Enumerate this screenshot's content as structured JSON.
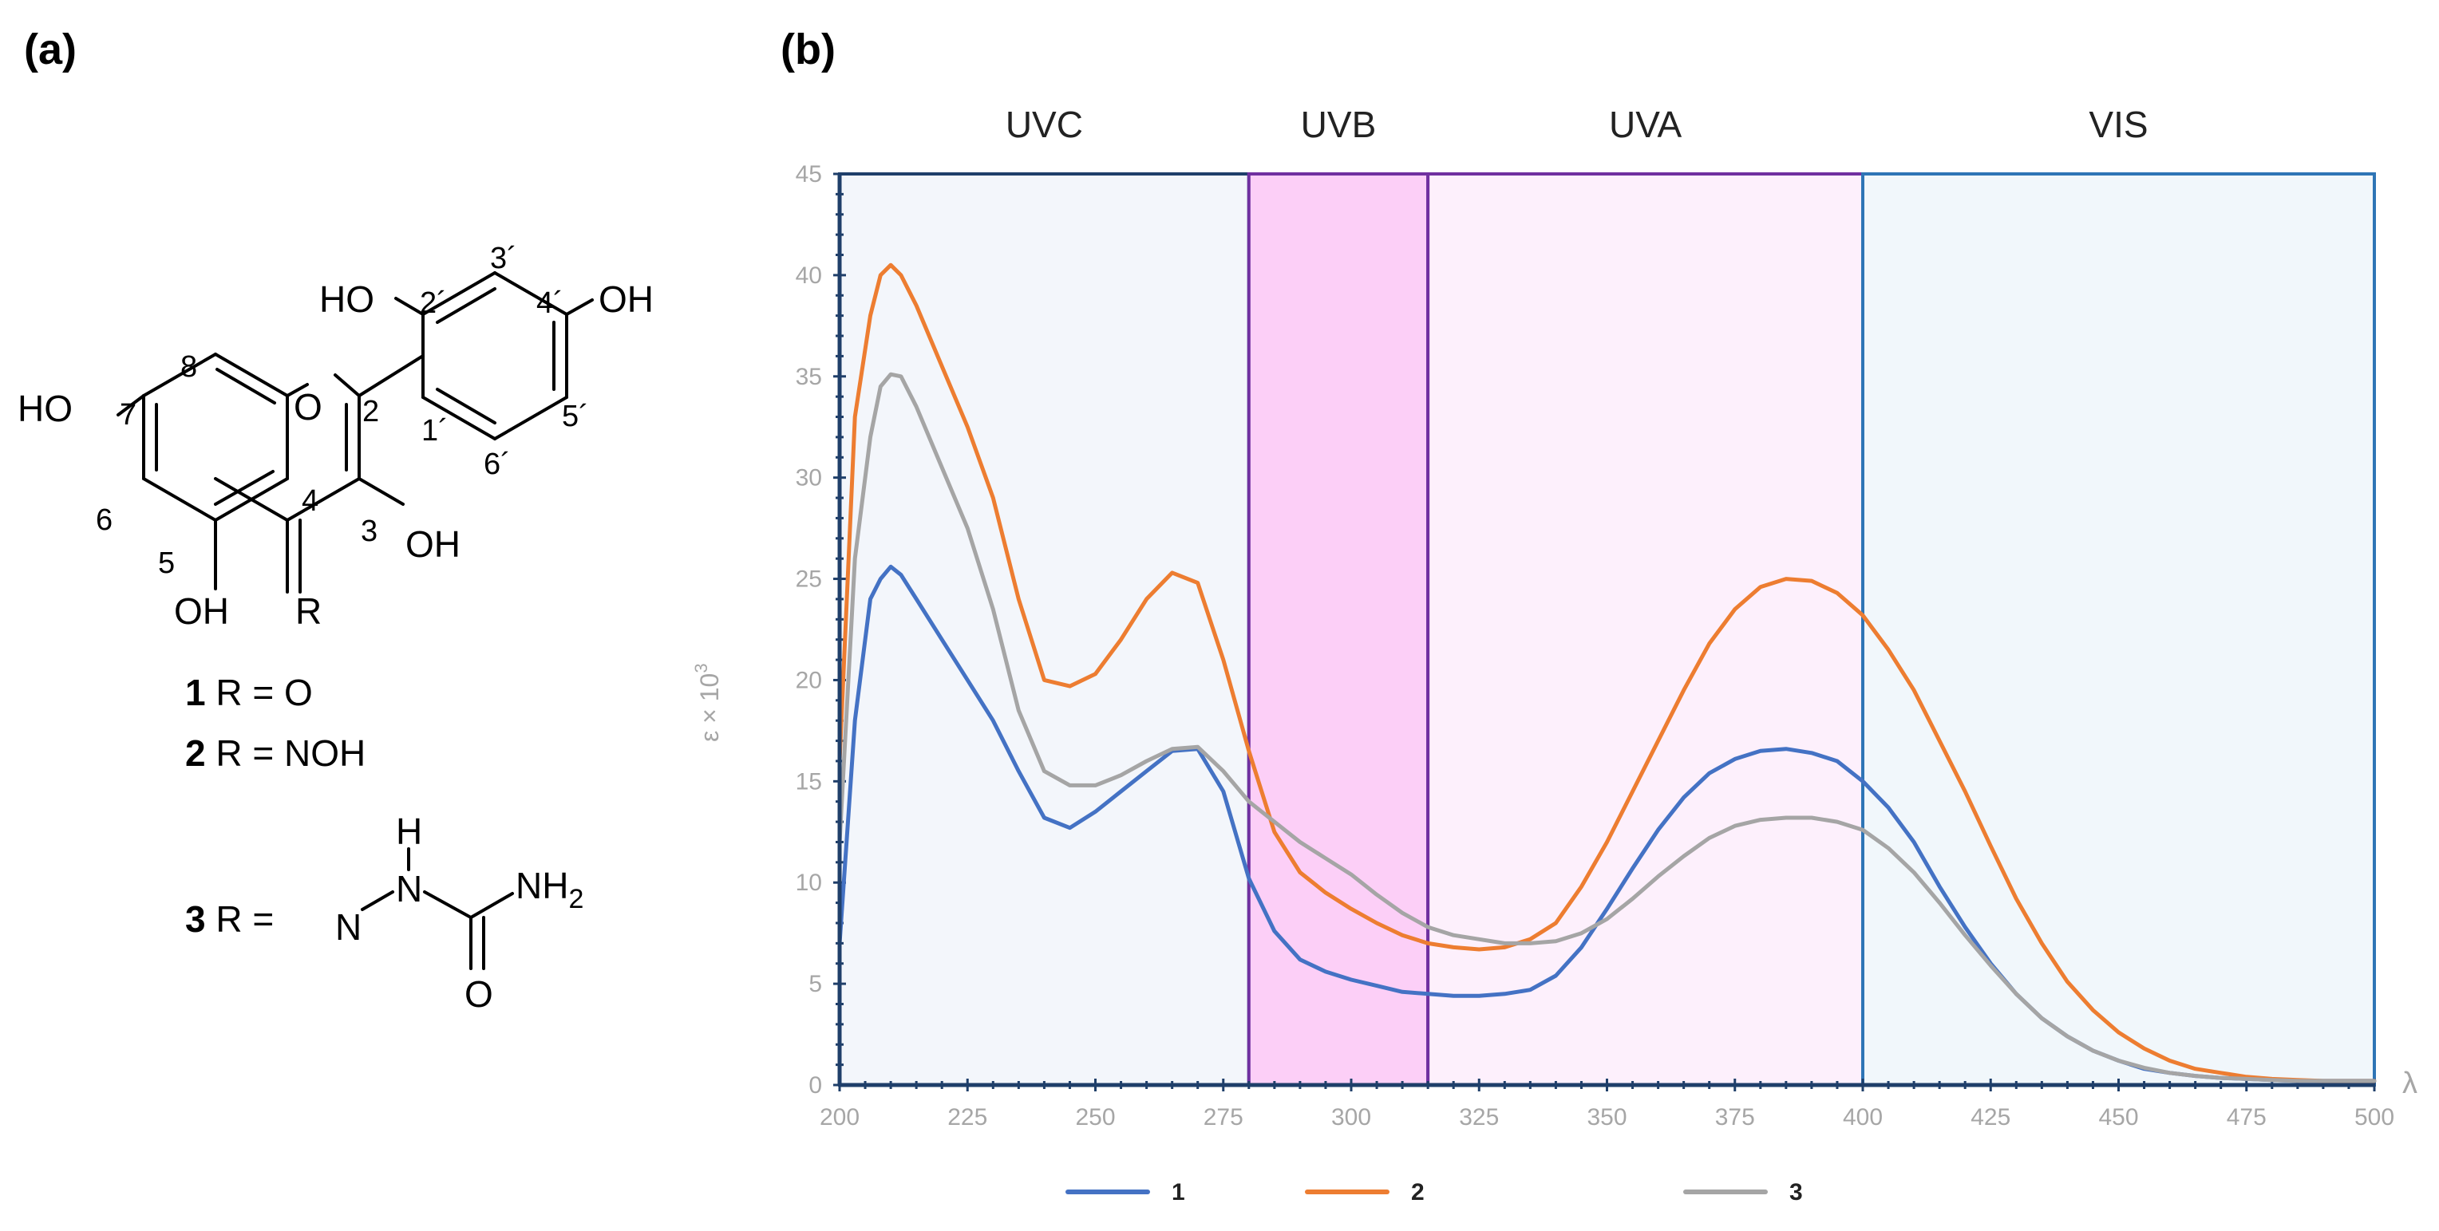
{
  "panel_a": {
    "label": "(a)",
    "structure": {
      "atoms": {
        "ho_2p": "HO",
        "oh_4p": "OH",
        "ho_7": "HO",
        "o_ring": "O",
        "oh_3": "OH",
        "oh_5": "OH",
        "r": "R"
      },
      "numbers": {
        "n8": "8",
        "n7": "7",
        "n6": "6",
        "n5": "5",
        "n4": "4",
        "n3": "3",
        "n2": "2",
        "n1p": "1´",
        "n2p": "2´",
        "n3p": "3´",
        "n4p": "4´",
        "n5p": "5´",
        "n6p": "6´"
      }
    },
    "compounds": [
      {
        "num": "1",
        "text": " R = O"
      },
      {
        "num": "2",
        "text": " R = NOH"
      },
      {
        "num": "3",
        "text": " R = "
      }
    ],
    "semicarbazone": {
      "h": "H",
      "n1": "N",
      "n2": "N",
      "nh2": "NH",
      "sub2": "2",
      "o": "O"
    }
  },
  "panel_b": {
    "label": "(b)",
    "regions": [
      {
        "name": "UVC",
        "from": 200,
        "to": 280,
        "fill": "#f3f6fb",
        "stroke": "#1f3f6a"
      },
      {
        "name": "UVB",
        "from": 280,
        "to": 315,
        "fill": "#fccff7",
        "stroke": "#7030a0"
      },
      {
        "name": "UVA",
        "from": 315,
        "to": 400,
        "fill": "#fdf0fc",
        "stroke": "#7030a0"
      },
      {
        "name": "VIS",
        "from": 400,
        "to": 500,
        "fill": "#f1f7fb",
        "stroke": "#2e75b6"
      }
    ]
  },
  "chart_data": {
    "type": "line",
    "title": "",
    "xlabel": "λ",
    "ylabel": "ε × 10",
    "ylabel_sup": "3",
    "xlim": [
      200,
      500
    ],
    "ylim": [
      0,
      45
    ],
    "xticks": [
      "200",
      "225",
      "250",
      "275",
      "300",
      "325",
      "350",
      "375",
      "400",
      "425",
      "450",
      "475",
      "500"
    ],
    "yticks": [
      "0",
      "5",
      "10",
      "15",
      "20",
      "25",
      "30",
      "35",
      "40",
      "45"
    ],
    "x": [
      200,
      203,
      206,
      208,
      210,
      212,
      215,
      220,
      225,
      230,
      235,
      240,
      245,
      250,
      255,
      260,
      265,
      270,
      275,
      280,
      285,
      290,
      295,
      300,
      305,
      310,
      315,
      320,
      325,
      330,
      335,
      340,
      345,
      350,
      355,
      360,
      365,
      370,
      375,
      380,
      385,
      390,
      395,
      400,
      405,
      410,
      415,
      420,
      425,
      430,
      435,
      440,
      445,
      450,
      455,
      460,
      465,
      470,
      475,
      480,
      485,
      490,
      495,
      500
    ],
    "series": [
      {
        "name": "1",
        "color": "#4472c4",
        "values": [
          7,
          18,
          24,
          25,
          25.6,
          25.2,
          24,
          22,
          20,
          18,
          15.5,
          13.2,
          12.7,
          13.5,
          14.5,
          15.5,
          16.5,
          16.6,
          14.5,
          10.2,
          7.6,
          6.2,
          5.6,
          5.2,
          4.9,
          4.6,
          4.5,
          4.4,
          4.4,
          4.5,
          4.7,
          5.4,
          6.8,
          8.7,
          10.7,
          12.6,
          14.2,
          15.4,
          16.1,
          16.5,
          16.6,
          16.4,
          16,
          15,
          13.7,
          12,
          9.8,
          7.8,
          6,
          4.5,
          3.3,
          2.4,
          1.7,
          1.2,
          0.8,
          0.6,
          0.45,
          0.35,
          0.3,
          0.25,
          0.2,
          0.2,
          0.2,
          0.2
        ]
      },
      {
        "name": "2",
        "color": "#ed7d31",
        "values": [
          16,
          33,
          38,
          40,
          40.5,
          40,
          38.5,
          35.5,
          32.5,
          29,
          24,
          20,
          19.7,
          20.3,
          22,
          24,
          25.3,
          24.8,
          21,
          16.5,
          12.5,
          10.5,
          9.5,
          8.7,
          8,
          7.4,
          7,
          6.8,
          6.7,
          6.8,
          7.2,
          8,
          9.8,
          12,
          14.5,
          17,
          19.5,
          21.8,
          23.5,
          24.6,
          25,
          24.9,
          24.3,
          23.2,
          21.5,
          19.5,
          17,
          14.5,
          11.8,
          9.2,
          7,
          5.1,
          3.7,
          2.6,
          1.8,
          1.2,
          0.8,
          0.6,
          0.4,
          0.3,
          0.25,
          0.2,
          0.2,
          0.2
        ]
      },
      {
        "name": "3",
        "color": "#a5a5a5",
        "values": [
          12,
          26,
          32,
          34.5,
          35.1,
          35,
          33.5,
          30.5,
          27.5,
          23.5,
          18.5,
          15.5,
          14.8,
          14.8,
          15.3,
          16,
          16.6,
          16.7,
          15.5,
          14,
          13,
          12,
          11.2,
          10.4,
          9.4,
          8.5,
          7.8,
          7.4,
          7.2,
          7,
          7,
          7.1,
          7.5,
          8.2,
          9.2,
          10.3,
          11.3,
          12.2,
          12.8,
          13.1,
          13.2,
          13.2,
          13,
          12.6,
          11.7,
          10.5,
          9,
          7.4,
          5.9,
          4.5,
          3.3,
          2.4,
          1.7,
          1.2,
          0.85,
          0.6,
          0.45,
          0.35,
          0.3,
          0.25,
          0.2,
          0.2,
          0.2,
          0.2
        ]
      }
    ],
    "legend": "bottom"
  }
}
